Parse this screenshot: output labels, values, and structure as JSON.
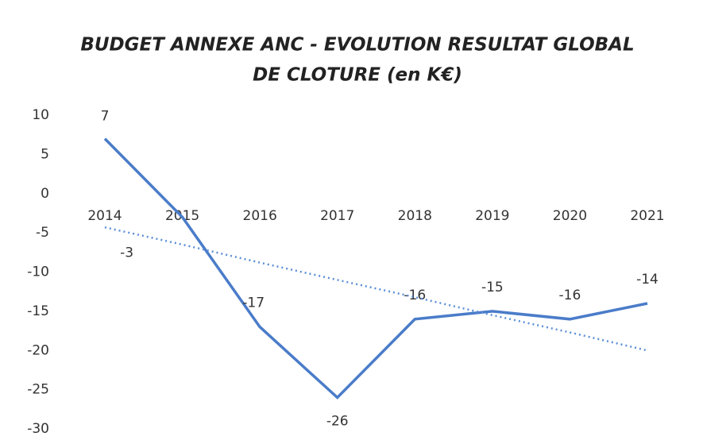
{
  "chart_data": {
    "type": "line",
    "title": [
      "BUDGET ANNEXE ANC - EVOLUTION RESULTAT GLOBAL",
      "DE CLOTURE  (en K€)"
    ],
    "categories": [
      "2014",
      "2015",
      "2016",
      "2017",
      "2018",
      "2019",
      "2020",
      "2021"
    ],
    "series": [
      {
        "color": "#4a7cc9",
        "values": [
          7,
          -3,
          -17,
          -26,
          -16,
          -15,
          -16,
          -14
        ],
        "data_labels": true
      },
      {
        "color": "#5b8fd6",
        "style": "dotted",
        "values": [
          -4.3,
          -6.5,
          -8.8,
          -11.0,
          -13.2,
          -15.5,
          -17.7,
          -20.0
        ]
      }
    ],
    "ylim": [
      -30,
      10
    ],
    "yticks": [
      10,
      5,
      0,
      -5,
      -10,
      -15,
      -20,
      -25,
      -30
    ],
    "grid": false
  }
}
